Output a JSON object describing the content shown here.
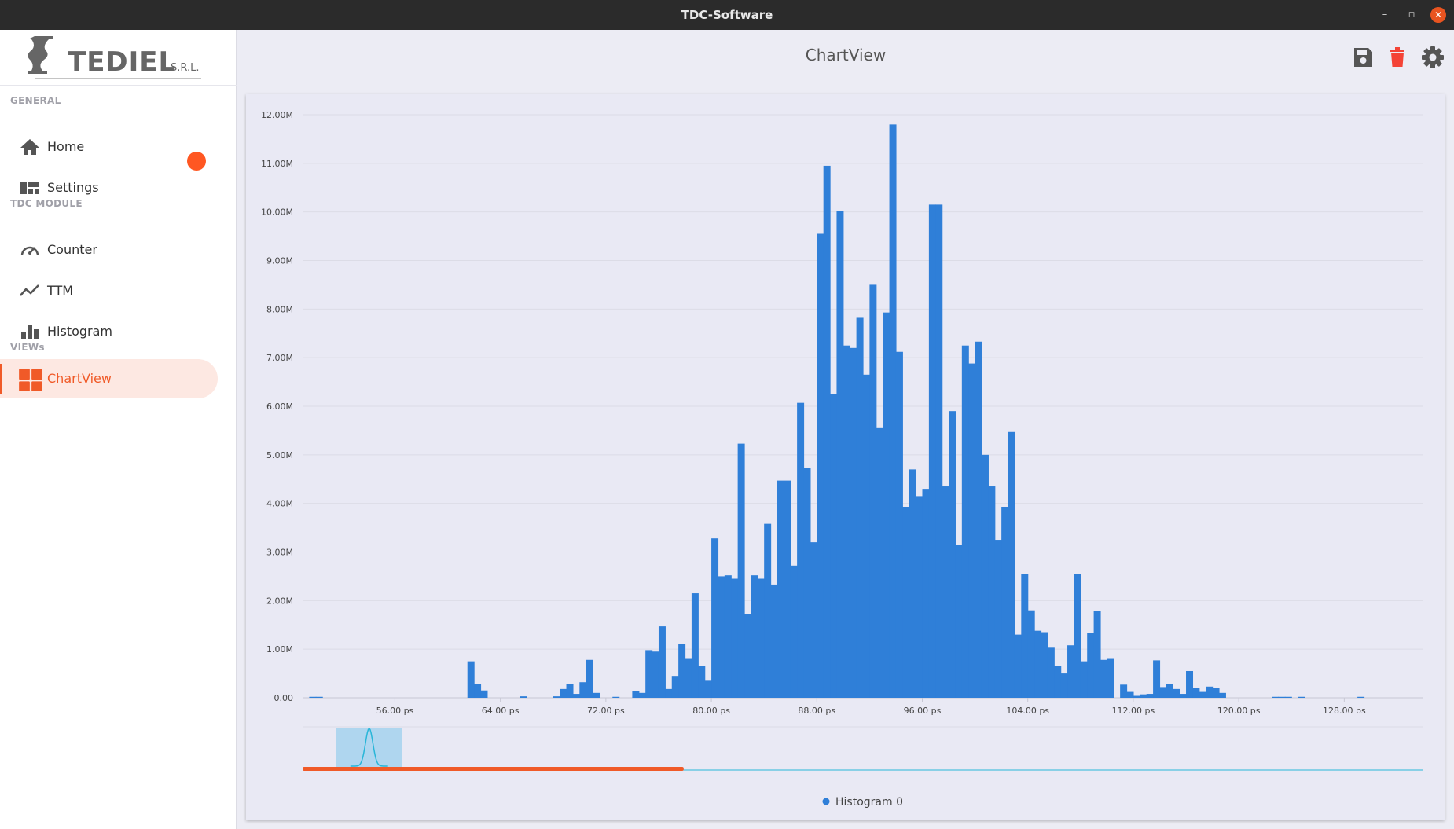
{
  "window": {
    "title": "TDC-Software",
    "minimize": "–",
    "maximize": "▫",
    "close": "✕"
  },
  "logo": {
    "brand": "TEDIEL",
    "suffix": "S.R.L."
  },
  "sidebar": {
    "sections": {
      "general": "GENERAL",
      "tdc_module": "TDC MODULE",
      "views": "VIEWs"
    },
    "items": {
      "home": "Home",
      "settings": "Settings",
      "counter": "Counter",
      "ttm": "TTM",
      "histogram": "Histogram",
      "chartview": "ChartView"
    }
  },
  "header": {
    "title": "ChartView",
    "icons": [
      "save-icon",
      "delete-icon",
      "gear-icon"
    ]
  },
  "colors": {
    "accent": "#f05a28",
    "bar": "#2f7fd8",
    "navigator": "#29b6d8",
    "selected_bg": "#fde8e2"
  },
  "chart_data": {
    "type": "bar",
    "title": "",
    "xlabel": "",
    "ylabel": "",
    "x_unit": "ps",
    "xlim": [
      49.0,
      134.0
    ],
    "ylim": [
      0,
      12000000
    ],
    "y_ticks": [
      "0.00",
      "1.00M",
      "2.00M",
      "3.00M",
      "4.00M",
      "5.00M",
      "6.00M",
      "7.00M",
      "8.00M",
      "9.00M",
      "10.00M",
      "11.00M",
      "12.00M"
    ],
    "x_ticks": [
      "56.00 ps",
      "64.00 ps",
      "72.00 ps",
      "80.00 ps",
      "88.00 ps",
      "96.00 ps",
      "104.00 ps",
      "112.00 ps",
      "120.00 ps",
      "128.00 ps"
    ],
    "x_tick_values": [
      56,
      64,
      72,
      80,
      88,
      96,
      104,
      112,
      120,
      128
    ],
    "bin_start": 49.5,
    "bin_width": 0.5,
    "legend": [
      "Histogram 0"
    ],
    "legend_position": "bottom",
    "grid": true,
    "series": [
      {
        "name": "Histogram 0",
        "values": [
          0.02,
          0.02,
          0,
          0,
          0,
          0,
          0,
          0,
          0,
          0,
          0,
          0,
          0,
          0,
          0,
          0,
          0,
          0,
          0,
          0,
          0,
          0,
          0,
          0,
          0.75,
          0.28,
          0.15,
          0,
          0,
          0,
          0,
          0,
          0.03,
          0,
          0,
          0,
          0,
          0.03,
          0.18,
          0.28,
          0.08,
          0.32,
          0.78,
          0.1,
          0,
          0,
          0.02,
          0,
          0,
          0.14,
          0.1,
          0.98,
          0.95,
          1.47,
          0.18,
          0.45,
          1.1,
          0.8,
          2.15,
          0.65,
          0.35,
          3.28,
          2.5,
          2.52,
          2.45,
          5.23,
          1.72,
          2.52,
          2.45,
          3.58,
          2.33,
          4.47,
          4.47,
          2.72,
          6.07,
          4.73,
          3.2,
          9.55,
          10.95,
          6.25,
          10.02,
          7.25,
          7.2,
          7.82,
          6.65,
          8.5,
          5.55,
          7.93,
          11.8,
          7.12,
          3.93,
          4.7,
          4.15,
          4.3,
          10.15,
          10.15,
          4.35,
          5.9,
          3.15,
          7.25,
          6.88,
          7.33,
          5,
          4.35,
          3.25,
          3.93,
          5.47,
          1.3,
          2.55,
          1.8,
          1.38,
          1.35,
          1.03,
          0.65,
          0.5,
          1.08,
          2.55,
          0.75,
          1.33,
          1.78,
          0.78,
          0.8,
          0,
          0.27,
          0.12,
          0.04,
          0.07,
          0.08,
          0.77,
          0.22,
          0.28,
          0.18,
          0.08,
          0.55,
          0.2,
          0.12,
          0.23,
          0.2,
          0.1,
          0,
          0,
          0,
          0,
          0,
          0,
          0,
          0.02,
          0.02,
          0.02,
          0,
          0.02,
          0,
          0,
          0,
          0,
          0,
          0,
          0,
          0,
          0.02,
          0,
          0,
          0,
          0
        ]
      }
    ],
    "value_scale": 1000000,
    "navigator": {
      "window_start": 54.0,
      "window_end": 59.0,
      "scroll_fraction": 0.34
    }
  }
}
